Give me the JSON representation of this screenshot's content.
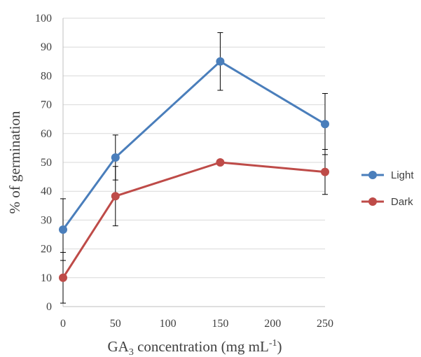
{
  "chart_data": {
    "type": "line",
    "x": [
      0,
      50,
      150,
      250
    ],
    "xlim": [
      0,
      250
    ],
    "xticks": [
      0,
      50,
      100,
      150,
      200,
      250
    ],
    "ylim": [
      0,
      100
    ],
    "yticks": [
      0,
      10,
      20,
      30,
      40,
      50,
      60,
      70,
      80,
      90,
      100
    ],
    "ylabel": "% of germination",
    "xlabel": {
      "prefix": "GA",
      "sub": "3",
      "middle": " concentration (mg mL",
      "sup": "-1",
      "suffix": ")"
    },
    "grid": true,
    "legend_position": "right",
    "series": [
      {
        "name": "Light",
        "color": "#4a7ebb",
        "values": [
          26.7,
          51.7,
          85,
          63.3
        ],
        "error": [
          10.7,
          7.8,
          10,
          10.6
        ]
      },
      {
        "name": "Dark",
        "color": "#be4b48",
        "values": [
          10,
          38.3,
          50,
          46.7
        ],
        "error": [
          8.8,
          10.3,
          0,
          7.8
        ]
      }
    ]
  }
}
